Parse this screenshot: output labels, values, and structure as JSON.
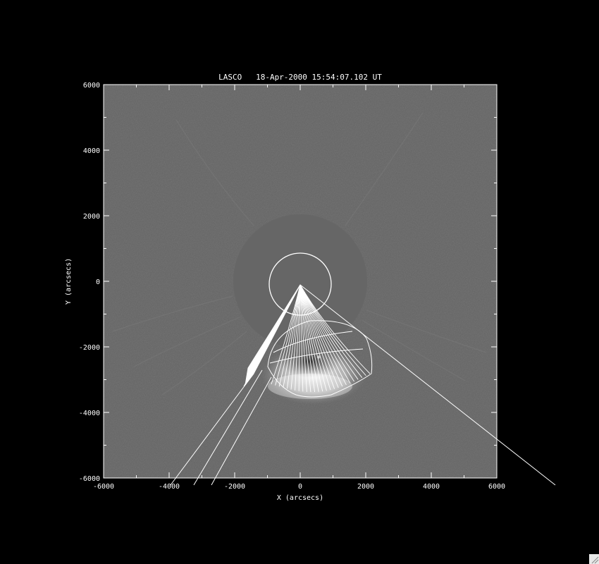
{
  "title": "LASCO   18-Apr-2000 15:54:07.102 UT",
  "axes": {
    "xlabel": "X (arcsecs)",
    "ylabel": "Y (arcsecs)",
    "xlim": [
      -6000,
      6000
    ],
    "ylim": [
      -6000,
      6000
    ],
    "xticks": [
      "-6000",
      "-4000",
      "-2000",
      "0",
      "2000",
      "4000",
      "6000"
    ],
    "yticks": [
      "6000",
      "4000",
      "2000",
      "0",
      "-2000",
      "-4000",
      "-6000"
    ]
  },
  "colors": {
    "background": "#000000",
    "image_gray": "#646464",
    "occulter_gray": "#666666",
    "overlay": "#ffffff"
  }
}
